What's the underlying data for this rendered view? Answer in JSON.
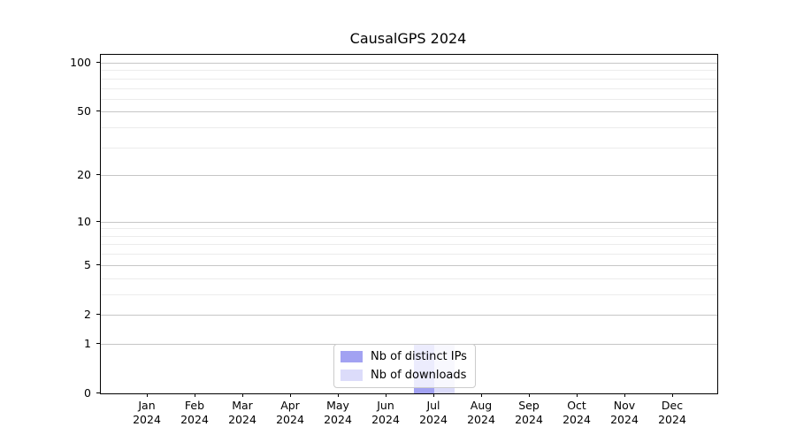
{
  "chart_data": {
    "type": "bar",
    "title": "CausalGPS 2024",
    "categories": [
      "Jan",
      "Feb",
      "Mar",
      "Apr",
      "May",
      "Jun",
      "Jul",
      "Aug",
      "Sep",
      "Oct",
      "Nov",
      "Dec"
    ],
    "category_sublabel": "2024",
    "series": [
      {
        "name": "Nb of distinct IPs",
        "color": "#a2a2f2",
        "values": [
          0,
          0,
          0,
          0,
          0,
          0,
          1,
          0,
          0,
          0,
          0,
          0
        ]
      },
      {
        "name": "Nb of downloads",
        "color": "#dcdcfa",
        "values": [
          0,
          0,
          0,
          0,
          0,
          0,
          1,
          0,
          0,
          0,
          0,
          0
        ]
      }
    ],
    "xlabel": "",
    "ylabel": "",
    "yscale": "log1p",
    "yticks": [
      0,
      1,
      2,
      5,
      10,
      20,
      50,
      100
    ],
    "minor_gridlines": [
      3,
      4,
      6,
      7,
      8,
      9,
      30,
      40,
      60,
      70,
      80,
      90
    ],
    "ylim": [
      0,
      112
    ],
    "grid": "horizontal",
    "legend": {
      "position": "lower center",
      "frame_color": "#cccccc"
    }
  }
}
